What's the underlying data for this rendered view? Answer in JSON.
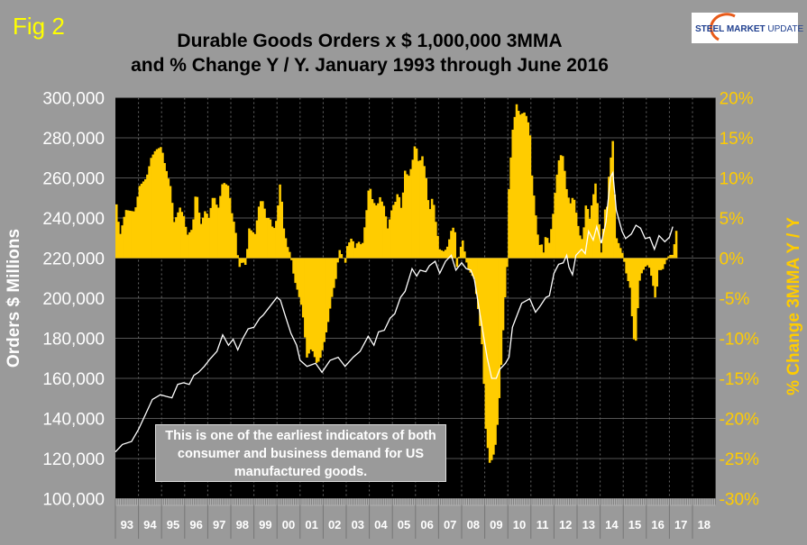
{
  "figure_label": "Fig 2",
  "logo_text": "STEEL MARKET UPDATE",
  "note": [
    "This is one of the earliest indicators of both",
    "consumer and business demand for US",
    "manufactured goods."
  ],
  "colors": {
    "bars": "#FFCC00",
    "line": "#FFFFFF",
    "plot_bg": "#000000",
    "page_bg": "#9A9A9A",
    "right_axis": "#FFCC00",
    "fig_label": "#FFFF00"
  },
  "chart_data": {
    "type": "bar+line",
    "title": [
      "Durable Goods Orders x $ 1,000,000 3MMA",
      "and % Change Y / Y. January 1993 through June 2016"
    ],
    "ylabel_left": "Orders $ Millions",
    "ylabel_right": "% Change 3MMA Y / Y",
    "ylim_left": [
      100000,
      300000
    ],
    "ylim_right": [
      -30,
      20
    ],
    "xlim": [
      1993,
      2019
    ],
    "grid": true,
    "x_tick_labels": [
      "93",
      "94",
      "95",
      "96",
      "97",
      "98",
      "99",
      "00",
      "01",
      "02",
      "03",
      "04",
      "05",
      "06",
      "07",
      "08",
      "09",
      "10",
      "11",
      "12",
      "13",
      "14",
      "15",
      "16",
      "17",
      "18"
    ],
    "y_left_tick_labels": [
      "100,000",
      "120,000",
      "140,000",
      "160,000",
      "180,000",
      "200,000",
      "220,000",
      "240,000",
      "260,000",
      "280,000",
      "300,000"
    ],
    "y_right_tick_labels": [
      "-30%",
      "-25%",
      "-20%",
      "-15%",
      "-10%",
      "-5%",
      "0%",
      "5%",
      "10%",
      "15%",
      "20%"
    ],
    "series": [
      {
        "type": "bar",
        "axis": "right",
        "unit": "% change Y/Y",
        "points": [
          [
            1993.0,
            6.7
          ],
          [
            1993.15,
            2.8
          ],
          [
            1993.4,
            6
          ],
          [
            1993.8,
            5.8
          ],
          [
            1994.0,
            9
          ],
          [
            1994.3,
            10
          ],
          [
            1994.5,
            12.5
          ],
          [
            1994.7,
            13.5
          ],
          [
            1994.95,
            13.9
          ],
          [
            1995.1,
            11.6
          ],
          [
            1995.35,
            8.8
          ],
          [
            1995.5,
            4.5
          ],
          [
            1995.75,
            6.3
          ],
          [
            1995.95,
            5
          ],
          [
            1996.05,
            2.8
          ],
          [
            1996.3,
            3.7
          ],
          [
            1996.45,
            8.8
          ],
          [
            1996.65,
            4.1
          ],
          [
            1996.85,
            6
          ],
          [
            1997.0,
            5
          ],
          [
            1997.2,
            8
          ],
          [
            1997.4,
            6
          ],
          [
            1997.6,
            9.5
          ],
          [
            1997.85,
            9
          ],
          [
            1998.0,
            5.6
          ],
          [
            1998.15,
            3.7
          ],
          [
            1998.3,
            -1.3
          ],
          [
            1998.45,
            -0.4
          ],
          [
            1998.6,
            -0.9
          ],
          [
            1998.75,
            3.7
          ],
          [
            1999.0,
            3
          ],
          [
            1999.2,
            7.1
          ],
          [
            1999.35,
            7.1
          ],
          [
            1999.5,
            5
          ],
          [
            1999.65,
            5
          ],
          [
            1999.8,
            3.4
          ],
          [
            1999.95,
            5
          ],
          [
            2000.1,
            9.7
          ],
          [
            2000.25,
            3.7
          ],
          [
            2000.4,
            1.5
          ],
          [
            2000.55,
            0.4
          ],
          [
            2000.7,
            -2.6
          ],
          [
            2000.85,
            -4.1
          ],
          [
            2001.05,
            -6.4
          ],
          [
            2001.25,
            -12.4
          ],
          [
            2001.45,
            -11.2
          ],
          [
            2001.67,
            -13.1
          ],
          [
            2001.8,
            -12.8
          ],
          [
            2001.97,
            -10.9
          ],
          [
            2002.15,
            -8.3
          ],
          [
            2002.3,
            -5.3
          ],
          [
            2002.5,
            -2.6
          ],
          [
            2002.65,
            1.1
          ],
          [
            2002.8,
            0.2
          ],
          [
            2002.95,
            -0.8
          ],
          [
            2003.0,
            1.5
          ],
          [
            2003.2,
            2.6
          ],
          [
            2003.35,
            1.1
          ],
          [
            2003.45,
            2.2
          ],
          [
            2003.65,
            1.5
          ],
          [
            2003.8,
            5
          ],
          [
            2003.95,
            9.4
          ],
          [
            2004.1,
            7.1
          ],
          [
            2004.3,
            6.4
          ],
          [
            2004.4,
            7.7
          ],
          [
            2004.6,
            6.4
          ],
          [
            2004.75,
            3.7
          ],
          [
            2004.95,
            6.4
          ],
          [
            2005.1,
            7.1
          ],
          [
            2005.2,
            8.4
          ],
          [
            2005.35,
            6
          ],
          [
            2005.5,
            10.9
          ],
          [
            2005.65,
            10.1
          ],
          [
            2005.8,
            11.6
          ],
          [
            2005.95,
            14.6
          ],
          [
            2006.1,
            11.8
          ],
          [
            2006.25,
            12.7
          ],
          [
            2006.4,
            10.5
          ],
          [
            2006.55,
            5.6
          ],
          [
            2006.7,
            7.9
          ],
          [
            2006.85,
            4.1
          ],
          [
            2007.0,
            1.1
          ],
          [
            2007.2,
            0.8
          ],
          [
            2007.35,
            1.5
          ],
          [
            2007.5,
            3.4
          ],
          [
            2007.65,
            4.1
          ],
          [
            2007.75,
            -1.1
          ],
          [
            2007.95,
            1.9
          ],
          [
            2008.0,
            2.2
          ],
          [
            2008.2,
            -1.1
          ],
          [
            2008.35,
            -1.9
          ],
          [
            2008.5,
            -2.6
          ],
          [
            2008.7,
            -7.1
          ],
          [
            2008.85,
            -11.2
          ],
          [
            2009.0,
            -21.3
          ],
          [
            2009.15,
            -25.6
          ],
          [
            2009.3,
            -25
          ],
          [
            2009.45,
            -22.8
          ],
          [
            2009.6,
            -16.8
          ],
          [
            2009.8,
            -6.4
          ],
          [
            2009.95,
            0.4
          ],
          [
            2010.0,
            8.6
          ],
          [
            2010.15,
            15.7
          ],
          [
            2010.35,
            19.5
          ],
          [
            2010.45,
            17.8
          ],
          [
            2010.55,
            18
          ],
          [
            2010.7,
            18.2
          ],
          [
            2010.9,
            16.3
          ],
          [
            2011.0,
            10.3
          ],
          [
            2011.15,
            5.8
          ],
          [
            2011.3,
            1.5
          ],
          [
            2011.4,
            1.9
          ],
          [
            2011.5,
            0.7
          ],
          [
            2011.6,
            3
          ],
          [
            2011.75,
            1.9
          ],
          [
            2011.9,
            5
          ],
          [
            2012.05,
            9.7
          ],
          [
            2012.2,
            12.9
          ],
          [
            2012.35,
            12.7
          ],
          [
            2012.5,
            8.6
          ],
          [
            2012.65,
            6.7
          ],
          [
            2012.8,
            7.9
          ],
          [
            2012.9,
            6
          ],
          [
            2013.05,
            3
          ],
          [
            2013.2,
            2.2
          ],
          [
            2013.35,
            7.1
          ],
          [
            2013.5,
            4.9
          ],
          [
            2013.6,
            6.9
          ],
          [
            2013.75,
            9.3
          ],
          [
            2013.9,
            4.9
          ],
          [
            2014.0,
            0.7
          ],
          [
            2014.15,
            6
          ],
          [
            2014.25,
            6.4
          ],
          [
            2014.35,
            10.9
          ],
          [
            2014.5,
            14.6
          ],
          [
            2014.65,
            2.6
          ],
          [
            2014.8,
            1.5
          ],
          [
            2014.95,
            0.4
          ],
          [
            2015.1,
            -2.2
          ],
          [
            2015.25,
            -3.7
          ],
          [
            2015.4,
            -10.1
          ],
          [
            2015.5,
            -10.3
          ],
          [
            2015.65,
            -3
          ],
          [
            2015.75,
            -1.9
          ],
          [
            2015.9,
            -1.1
          ],
          [
            2016.05,
            -0.8
          ],
          [
            2016.2,
            -2.6
          ],
          [
            2016.35,
            -5.2
          ],
          [
            2016.5,
            -1.5
          ],
          [
            2016.65,
            -1.5
          ],
          [
            2016.8,
            -0.4
          ],
          [
            2016.95,
            0.4
          ],
          [
            2017.1,
            0.4
          ],
          [
            2017.25,
            3.4
          ]
        ]
      },
      {
        "type": "line",
        "axis": "left",
        "unit": "$ millions",
        "points": [
          [
            1993.0,
            123300
          ],
          [
            1993.3,
            127000
          ],
          [
            1993.7,
            128500
          ],
          [
            1994.0,
            134500
          ],
          [
            1994.3,
            142000
          ],
          [
            1994.6,
            149500
          ],
          [
            1994.95,
            151800
          ],
          [
            1995.2,
            151000
          ],
          [
            1995.45,
            150300
          ],
          [
            1995.7,
            157000
          ],
          [
            1995.95,
            157800
          ],
          [
            1996.2,
            157000
          ],
          [
            1996.4,
            161500
          ],
          [
            1996.6,
            163000
          ],
          [
            1996.85,
            166000
          ],
          [
            1997.1,
            169700
          ],
          [
            1997.4,
            173500
          ],
          [
            1997.65,
            181700
          ],
          [
            1997.9,
            176500
          ],
          [
            1998.1,
            179500
          ],
          [
            1998.3,
            174200
          ],
          [
            1998.5,
            179500
          ],
          [
            1998.75,
            184700
          ],
          [
            1999.0,
            185500
          ],
          [
            1999.25,
            190000
          ],
          [
            1999.4,
            191500
          ],
          [
            1999.6,
            194500
          ],
          [
            2000.0,
            200400
          ],
          [
            2000.15,
            199000
          ],
          [
            2000.35,
            191500
          ],
          [
            2000.6,
            182500
          ],
          [
            2000.85,
            176500
          ],
          [
            2001.0,
            169000
          ],
          [
            2001.3,
            166000
          ],
          [
            2001.67,
            167500
          ],
          [
            2001.95,
            163000
          ],
          [
            2002.3,
            169000
          ],
          [
            2002.65,
            170500
          ],
          [
            2002.95,
            166000
          ],
          [
            2003.3,
            170500
          ],
          [
            2003.6,
            173500
          ],
          [
            2003.95,
            181000
          ],
          [
            2004.2,
            176500
          ],
          [
            2004.4,
            183200
          ],
          [
            2004.65,
            184000
          ],
          [
            2004.9,
            190000
          ],
          [
            2005.1,
            192200
          ],
          [
            2005.35,
            200400
          ],
          [
            2005.55,
            203400
          ],
          [
            2005.85,
            214700
          ],
          [
            2006.05,
            211000
          ],
          [
            2006.2,
            214000
          ],
          [
            2006.45,
            213200
          ],
          [
            2006.6,
            216200
          ],
          [
            2006.85,
            218400
          ],
          [
            2007.05,
            212400
          ],
          [
            2007.3,
            218400
          ],
          [
            2007.55,
            221400
          ],
          [
            2007.75,
            214000
          ],
          [
            2008.0,
            217700
          ],
          [
            2008.2,
            214700
          ],
          [
            2008.4,
            214000
          ],
          [
            2008.55,
            209400
          ],
          [
            2008.8,
            191500
          ],
          [
            2009.1,
            170500
          ],
          [
            2009.3,
            160000
          ],
          [
            2009.5,
            160000
          ],
          [
            2009.65,
            164500
          ],
          [
            2009.9,
            167500
          ],
          [
            2010.05,
            170500
          ],
          [
            2010.2,
            185500
          ],
          [
            2010.45,
            193000
          ],
          [
            2010.6,
            197500
          ],
          [
            2010.95,
            199700
          ],
          [
            2011.2,
            193000
          ],
          [
            2011.4,
            196000
          ],
          [
            2011.65,
            200400
          ],
          [
            2011.8,
            201200
          ],
          [
            2012.0,
            212400
          ],
          [
            2012.2,
            216900
          ],
          [
            2012.4,
            217600
          ],
          [
            2012.55,
            221400
          ],
          [
            2012.65,
            215400
          ],
          [
            2012.8,
            211700
          ],
          [
            2012.95,
            221400
          ],
          [
            2013.2,
            224400
          ],
          [
            2013.35,
            222200
          ],
          [
            2013.5,
            233400
          ],
          [
            2013.7,
            229000
          ],
          [
            2013.85,
            235700
          ],
          [
            2014.05,
            227400
          ],
          [
            2014.25,
            237900
          ],
          [
            2014.45,
            260400
          ],
          [
            2014.55,
            262600
          ],
          [
            2014.7,
            243900
          ],
          [
            2014.95,
            233400
          ],
          [
            2015.1,
            229700
          ],
          [
            2015.35,
            232000
          ],
          [
            2015.55,
            236400
          ],
          [
            2015.75,
            234900
          ],
          [
            2015.95,
            229700
          ],
          [
            2016.15,
            230400
          ],
          [
            2016.35,
            224400
          ],
          [
            2016.55,
            231200
          ],
          [
            2016.8,
            228200
          ],
          [
            2017.0,
            230400
          ],
          [
            2017.15,
            235700
          ]
        ]
      }
    ]
  }
}
